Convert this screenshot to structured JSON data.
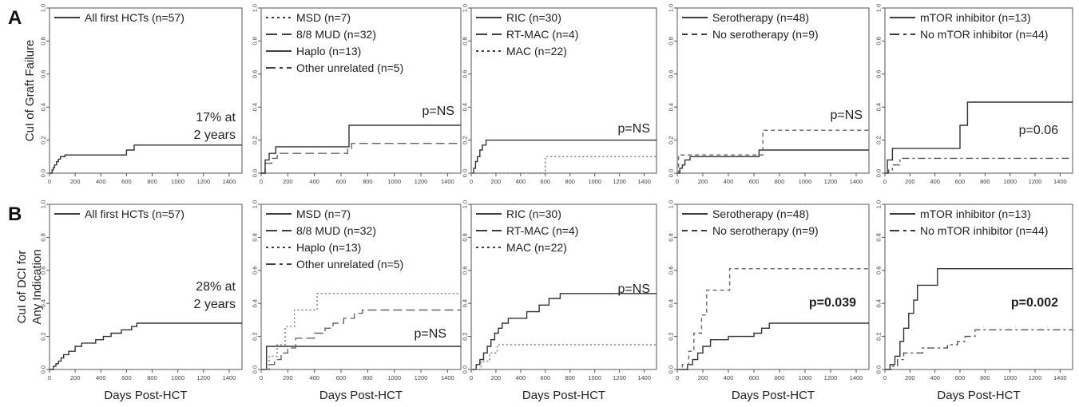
{
  "figure": {
    "row_labels": [
      "A",
      "B"
    ],
    "row_ylabels": [
      [
        "CuI of Graft Failure"
      ],
      [
        "CuI of DCI for",
        "Any Indication"
      ]
    ],
    "xlabel": "Days Post-HCT"
  },
  "chart_data": [
    {
      "type": "line",
      "row": 0,
      "col": 0,
      "xlim": [
        0,
        1500
      ],
      "ylim": [
        0,
        1
      ],
      "xticks": [
        0,
        200,
        400,
        600,
        800,
        1000,
        1200,
        1400
      ],
      "yticks": [
        0.0,
        0.2,
        0.4,
        0.6,
        0.8,
        1.0
      ],
      "annotation": {
        "lines": [
          "17% at",
          "2 years"
        ],
        "bold": false
      },
      "series": [
        {
          "name": "All first HCTs (n=57)",
          "style": "solid",
          "x": [
            0,
            20,
            30,
            40,
            55,
            70,
            85,
            120,
            600,
            660,
            1500
          ],
          "y": [
            0,
            0.02,
            0.035,
            0.05,
            0.07,
            0.085,
            0.1,
            0.11,
            0.14,
            0.17,
            0.17
          ]
        }
      ]
    },
    {
      "type": "line",
      "row": 0,
      "col": 1,
      "xlim": [
        0,
        1500
      ],
      "ylim": [
        0,
        1
      ],
      "xticks": [
        0,
        200,
        400,
        600,
        800,
        1000,
        1200,
        1400
      ],
      "yticks": [
        0.0,
        0.2,
        0.4,
        0.6,
        0.8,
        1.0
      ],
      "annotation": {
        "lines": [
          "p=NS"
        ],
        "bold": false
      },
      "series": [
        {
          "name": "MSD (n=7)",
          "style": "dotted",
          "x": [],
          "y": []
        },
        {
          "name": "8/8 MUD (n=32)",
          "style": "longdash",
          "x": [
            0,
            30,
            80,
            120,
            650,
            680,
            1500
          ],
          "y": [
            0,
            0.06,
            0.09,
            0.12,
            0.15,
            0.18,
            0.18
          ]
        },
        {
          "name": "Haplo (n=13)",
          "style": "solid",
          "x": [
            0,
            30,
            60,
            110,
            660,
            1500
          ],
          "y": [
            0,
            0.08,
            0.12,
            0.16,
            0.29,
            0.29
          ]
        },
        {
          "name": "Other unrelated (n=5)",
          "style": "dashdot",
          "x": [],
          "y": []
        }
      ]
    },
    {
      "type": "line",
      "row": 0,
      "col": 2,
      "xlim": [
        0,
        1500
      ],
      "ylim": [
        0,
        1
      ],
      "xticks": [
        0,
        200,
        400,
        600,
        800,
        1000,
        1200,
        1400
      ],
      "yticks": [
        0.0,
        0.2,
        0.4,
        0.6,
        0.8,
        1.0
      ],
      "annotation": {
        "lines": [
          "p=NS"
        ],
        "bold": false
      },
      "series": [
        {
          "name": "RIC (n=30)",
          "style": "solid",
          "x": [
            0,
            20,
            35,
            50,
            70,
            90,
            120,
            1500
          ],
          "y": [
            0,
            0.03,
            0.07,
            0.1,
            0.14,
            0.17,
            0.2,
            0.2
          ]
        },
        {
          "name": "RT-MAC (n=4)",
          "style": "longdash",
          "x": [],
          "y": []
        },
        {
          "name": "MAC (n=22)",
          "style": "dotted",
          "x": [
            0,
            600,
            1500
          ],
          "y": [
            0,
            0.1,
            0.1
          ]
        }
      ]
    },
    {
      "type": "line",
      "row": 0,
      "col": 3,
      "xlim": [
        0,
        1500
      ],
      "ylim": [
        0,
        1
      ],
      "xticks": [
        0,
        200,
        400,
        600,
        800,
        1000,
        1200,
        1400
      ],
      "yticks": [
        0.0,
        0.2,
        0.4,
        0.6,
        0.8,
        1.0
      ],
      "annotation": {
        "lines": [
          "p=NS"
        ],
        "bold": false
      },
      "series": [
        {
          "name": "Serotherapy (n=48)",
          "style": "solid",
          "x": [
            0,
            20,
            40,
            60,
            100,
            640,
            1500
          ],
          "y": [
            0,
            0.03,
            0.05,
            0.08,
            0.1,
            0.14,
            0.14
          ]
        },
        {
          "name": "No serotherapy (n=9)",
          "style": "dashed",
          "x": [
            0,
            10,
            670,
            1500
          ],
          "y": [
            0,
            0.11,
            0.26,
            0.26
          ]
        }
      ]
    },
    {
      "type": "line",
      "row": 0,
      "col": 4,
      "xlim": [
        0,
        1500
      ],
      "ylim": [
        0,
        1
      ],
      "xticks": [
        0,
        200,
        400,
        600,
        800,
        1000,
        1200,
        1400
      ],
      "yticks": [
        0.0,
        0.2,
        0.4,
        0.6,
        0.8,
        1.0
      ],
      "annotation": {
        "lines": [
          "p=0.06"
        ],
        "bold": false
      },
      "series": [
        {
          "name": "mTOR inhibitor (n=13)",
          "style": "solid",
          "x": [
            0,
            20,
            60,
            600,
            660,
            1500
          ],
          "y": [
            0,
            0.08,
            0.15,
            0.29,
            0.43,
            0.43
          ]
        },
        {
          "name": "No mTOR inhibitor (n=44)",
          "style": "dashdot",
          "x": [
            0,
            30,
            60,
            120,
            1500
          ],
          "y": [
            0,
            0.02,
            0.05,
            0.09,
            0.09
          ]
        }
      ]
    },
    {
      "type": "line",
      "row": 1,
      "col": 0,
      "xlim": [
        0,
        1500
      ],
      "ylim": [
        0,
        1
      ],
      "xticks": [
        0,
        200,
        400,
        600,
        800,
        1000,
        1200,
        1400
      ],
      "yticks": [
        0.0,
        0.2,
        0.4,
        0.6,
        0.8,
        1.0
      ],
      "annotation": {
        "lines": [
          "28% at",
          "2 years"
        ],
        "bold": false
      },
      "series": [
        {
          "name": "All first HCTs (n=57)",
          "style": "solid",
          "x": [
            0,
            30,
            50,
            70,
            90,
            110,
            150,
            200,
            250,
            360,
            420,
            480,
            560,
            640,
            680,
            1500
          ],
          "y": [
            0,
            0.02,
            0.035,
            0.05,
            0.07,
            0.09,
            0.11,
            0.14,
            0.16,
            0.18,
            0.2,
            0.22,
            0.24,
            0.26,
            0.28,
            0.28
          ]
        }
      ]
    },
    {
      "type": "line",
      "row": 1,
      "col": 1,
      "xlim": [
        0,
        1500
      ],
      "ylim": [
        0,
        1
      ],
      "xticks": [
        0,
        200,
        400,
        600,
        800,
        1000,
        1200,
        1400
      ],
      "yticks": [
        0.0,
        0.2,
        0.4,
        0.6,
        0.8,
        1.0
      ],
      "annotation": {
        "lines": [
          "p=NS"
        ],
        "bold": false
      },
      "series": [
        {
          "name": "MSD (n=7)",
          "style": "solid",
          "x": [
            0,
            40,
            1500
          ],
          "y": [
            0,
            0.14,
            0.14
          ]
        },
        {
          "name": "8/8 MUD (n=32)",
          "style": "longdash",
          "x": [
            0,
            60,
            100,
            150,
            200,
            260,
            400,
            480,
            540,
            620,
            700,
            760,
            1500
          ],
          "y": [
            0,
            0.03,
            0.06,
            0.1,
            0.13,
            0.19,
            0.22,
            0.25,
            0.28,
            0.31,
            0.34,
            0.36,
            0.36
          ]
        },
        {
          "name": "Haplo (n=13)",
          "style": "dotted",
          "x": [
            0,
            60,
            120,
            180,
            250,
            420,
            1500
          ],
          "y": [
            0,
            0.08,
            0.15,
            0.26,
            0.36,
            0.46,
            0.46
          ]
        },
        {
          "name": "Other unrelated (n=5)",
          "style": "dashdot",
          "x": [],
          "y": []
        }
      ]
    },
    {
      "type": "line",
      "row": 1,
      "col": 2,
      "xlim": [
        0,
        1500
      ],
      "ylim": [
        0,
        1
      ],
      "xticks": [
        0,
        200,
        400,
        600,
        800,
        1000,
        1200,
        1400
      ],
      "yticks": [
        0.0,
        0.2,
        0.4,
        0.6,
        0.8,
        1.0
      ],
      "annotation": {
        "lines": [
          "p=NS"
        ],
        "bold": false
      },
      "series": [
        {
          "name": "RIC (n=30)",
          "style": "solid",
          "x": [
            0,
            40,
            70,
            100,
            130,
            160,
            190,
            220,
            250,
            300,
            450,
            550,
            630,
            720,
            1500
          ],
          "y": [
            0,
            0.03,
            0.06,
            0.1,
            0.14,
            0.18,
            0.22,
            0.25,
            0.28,
            0.31,
            0.35,
            0.39,
            0.43,
            0.46,
            0.46
          ]
        },
        {
          "name": "RT-MAC (n=4)",
          "style": "longdash",
          "x": [],
          "y": []
        },
        {
          "name": "MAC (n=22)",
          "style": "dotted",
          "x": [
            0,
            80,
            150,
            210,
            1500
          ],
          "y": [
            0,
            0.05,
            0.1,
            0.15,
            0.15
          ]
        }
      ]
    },
    {
      "type": "line",
      "row": 1,
      "col": 3,
      "xlim": [
        0,
        1500
      ],
      "ylim": [
        0,
        1
      ],
      "xticks": [
        0,
        200,
        400,
        600,
        800,
        1000,
        1200,
        1400
      ],
      "yticks": [
        0.0,
        0.2,
        0.4,
        0.6,
        0.8,
        1.0
      ],
      "annotation": {
        "lines": [
          "p=0.039"
        ],
        "bold": true
      },
      "series": [
        {
          "name": "Serotherapy (n=48)",
          "style": "solid",
          "x": [
            0,
            80,
            120,
            160,
            200,
            260,
            400,
            600,
            660,
            720,
            1500
          ],
          "y": [
            0,
            0.03,
            0.06,
            0.1,
            0.14,
            0.18,
            0.2,
            0.22,
            0.25,
            0.28,
            0.28
          ]
        },
        {
          "name": "No serotherapy (n=9)",
          "style": "dashed",
          "x": [
            0,
            40,
            90,
            130,
            190,
            230,
            300,
            410,
            1500
          ],
          "y": [
            0,
            0.03,
            0.11,
            0.22,
            0.33,
            0.48,
            0.48,
            0.61,
            0.61
          ]
        }
      ]
    },
    {
      "type": "line",
      "row": 1,
      "col": 4,
      "xlim": [
        0,
        1500
      ],
      "ylim": [
        0,
        1
      ],
      "xticks": [
        0,
        200,
        400,
        600,
        800,
        1000,
        1200,
        1400
      ],
      "yticks": [
        0.0,
        0.2,
        0.4,
        0.6,
        0.8,
        1.0
      ],
      "annotation": {
        "lines": [
          "p=0.002"
        ],
        "bold": true
      },
      "series": [
        {
          "name": "mTOR inhibitor (n=13)",
          "style": "solid",
          "x": [
            0,
            40,
            80,
            120,
            150,
            190,
            230,
            260,
            420,
            1500
          ],
          "y": [
            0,
            0.03,
            0.08,
            0.17,
            0.25,
            0.34,
            0.42,
            0.51,
            0.61,
            0.61
          ]
        },
        {
          "name": "No mTOR inhibitor (n=44)",
          "style": "dashdot",
          "x": [
            0,
            60,
            100,
            150,
            300,
            500,
            580,
            640,
            720,
            1500
          ],
          "y": [
            0,
            0.02,
            0.06,
            0.1,
            0.13,
            0.15,
            0.17,
            0.2,
            0.24,
            0.24
          ]
        }
      ]
    }
  ]
}
